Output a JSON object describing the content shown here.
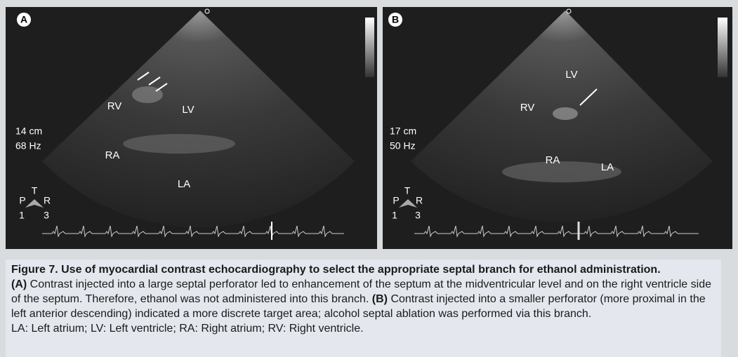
{
  "panels": [
    {
      "label": "A",
      "annotations": [
        "RV",
        "LV",
        "RA",
        "LA"
      ],
      "depth": "14 cm",
      "frequency": "68 Hz",
      "orientation": {
        "left": "P",
        "top": "T",
        "right": "R",
        "left_number": "1",
        "right_number": "3"
      }
    },
    {
      "label": "B",
      "annotations": [
        "LV",
        "RV",
        "RA",
        "LA"
      ],
      "depth": "17 cm",
      "frequency": "50 Hz",
      "orientation": {
        "left": "P",
        "top": "T",
        "right": "R",
        "left_number": "1",
        "right_number": "3"
      }
    }
  ],
  "caption": {
    "title": "Figure 7. Use of myocardial contrast echocardiography to select the appropriate septal branch for ethanol administration.",
    "body": [
      {
        "bold": "(A)",
        "text": " Contrast injected into a large septal perforator led to enhancement of the septum at the midventricular level and on the right ventricle side of the septum. Therefore, ethanol was not administered into this branch. "
      },
      {
        "bold": "(B)",
        "text": " Contrast injected into a smaller perforator (more proximal in the left anterior descending) indicated a more discrete target area; alcohol septal ablation was performed via this branch."
      }
    ],
    "abbreviations": "LA: Left atrium; LV: Left ventricle; RA: Right atrium; RV: Right ventricle."
  }
}
